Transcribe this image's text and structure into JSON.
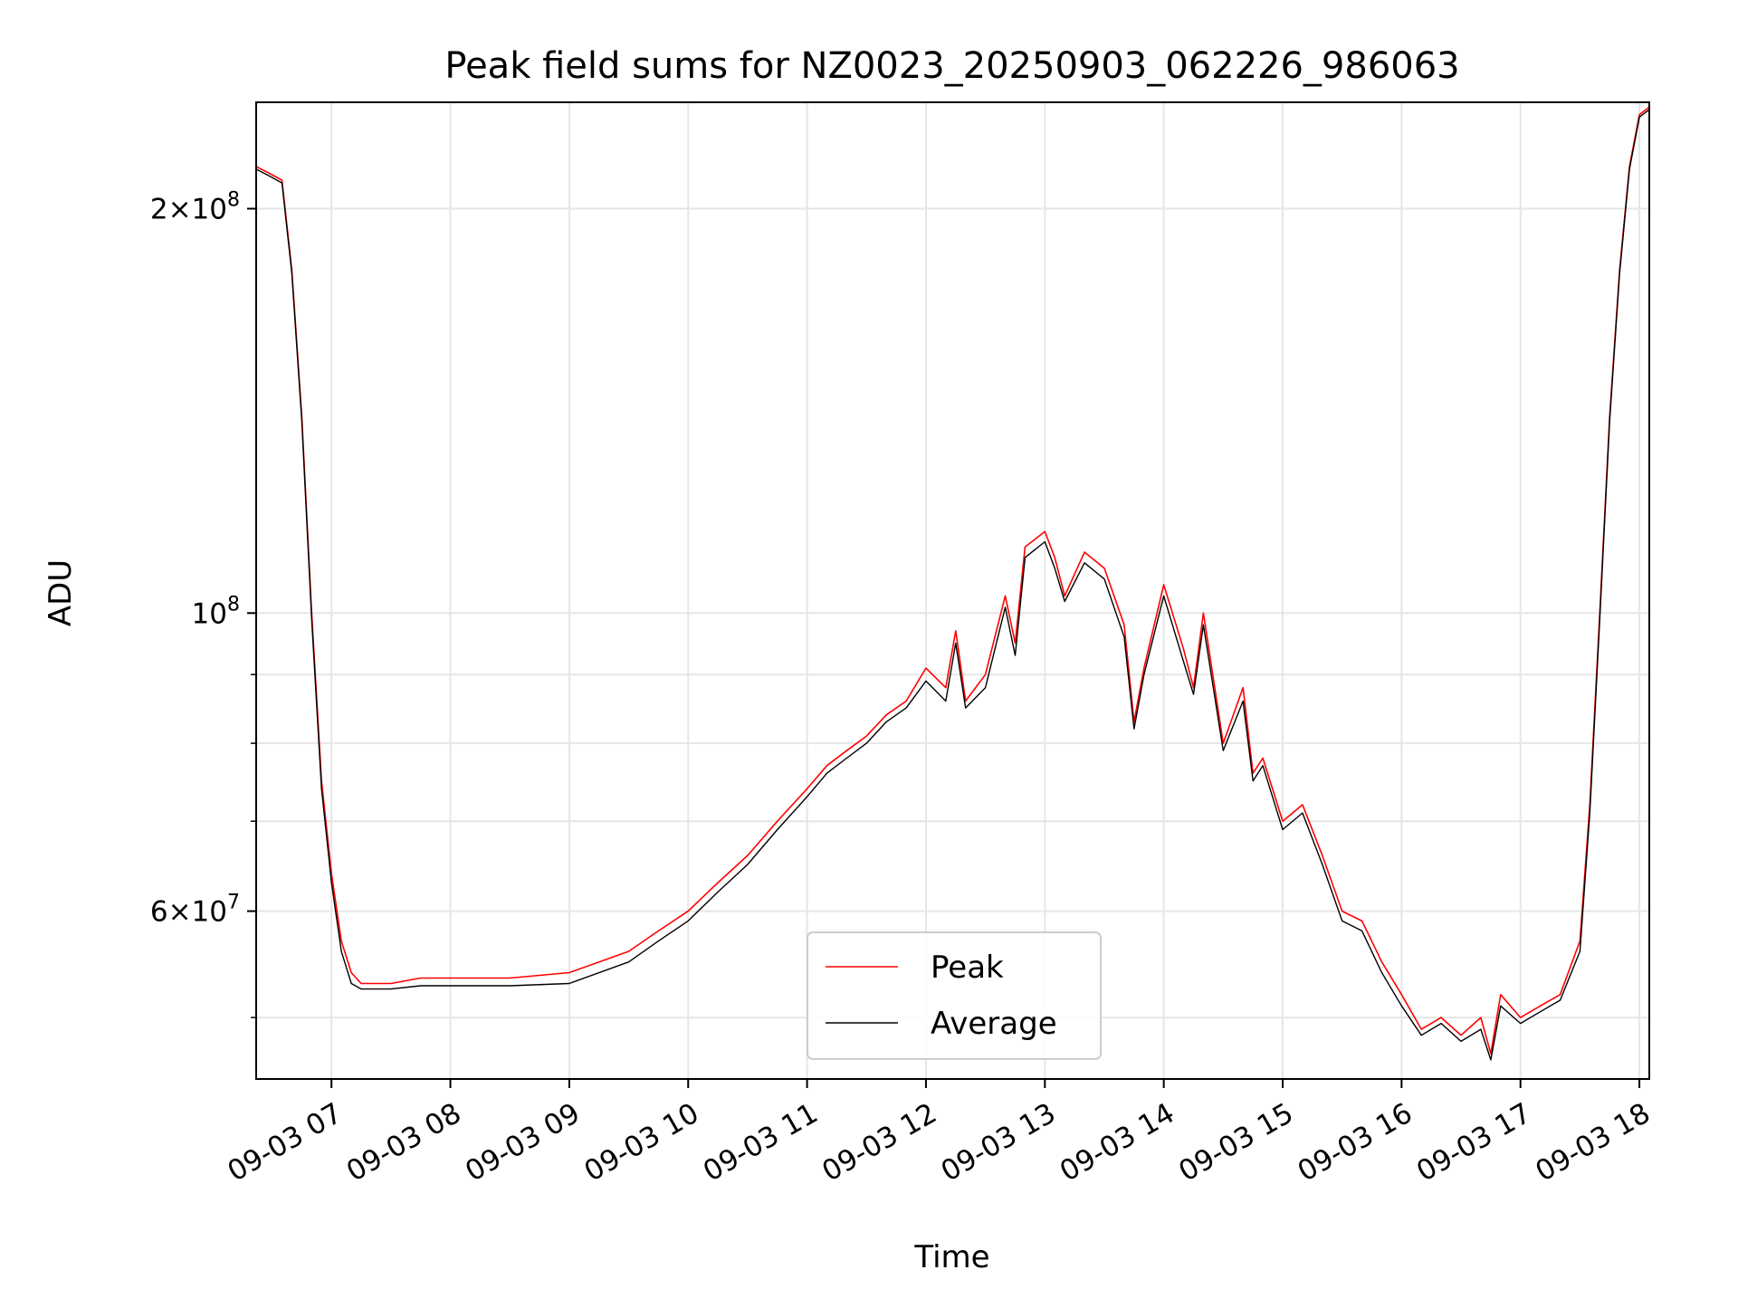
{
  "chart_data": {
    "type": "line",
    "title": "Peak field sums for NZ0023_20250903_062226_986063",
    "xlabel": "Time",
    "ylabel": "ADU",
    "xlim": [
      "09-03 06:22",
      "09-03 18:05"
    ],
    "ylim": [
      45000000,
      240000000
    ],
    "y_scale": "log",
    "grid": true,
    "legend_position": "lower center",
    "x_tick_labels": [
      "09-03 07",
      "09-03 08",
      "09-03 09",
      "09-03 10",
      "09-03 11",
      "09-03 12",
      "09-03 13",
      "09-03 14",
      "09-03 15",
      "09-03 16",
      "09-03 17",
      "09-03 18"
    ],
    "y_tick_labels": [
      {
        "value": 200000000,
        "mantissa": "2",
        "exponent": "8"
      },
      {
        "value": 100000000,
        "mantissa": "",
        "exponent": "8"
      },
      {
        "value": 60000000,
        "mantissa": "6",
        "exponent": "7"
      }
    ],
    "x": [
      "06:22",
      "06:30",
      "06:35",
      "06:40",
      "06:45",
      "06:50",
      "06:55",
      "07:00",
      "07:05",
      "07:10",
      "07:15",
      "07:20",
      "07:30",
      "07:45",
      "08:00",
      "08:30",
      "09:00",
      "09:30",
      "09:45",
      "10:00",
      "10:15",
      "10:30",
      "10:45",
      "11:00",
      "11:10",
      "11:20",
      "11:30",
      "11:40",
      "11:50",
      "12:00",
      "12:10",
      "12:15",
      "12:20",
      "12:30",
      "12:40",
      "12:45",
      "12:50",
      "13:00",
      "13:05",
      "13:10",
      "13:20",
      "13:30",
      "13:40",
      "13:45",
      "13:50",
      "14:00",
      "14:10",
      "14:15",
      "14:20",
      "14:30",
      "14:40",
      "14:45",
      "14:50",
      "15:00",
      "15:10",
      "15:20",
      "15:30",
      "15:40",
      "15:50",
      "16:00",
      "16:10",
      "16:20",
      "16:30",
      "16:40",
      "16:45",
      "16:50",
      "17:00",
      "17:10",
      "17:20",
      "17:30",
      "17:35",
      "17:40",
      "17:45",
      "17:50",
      "17:55",
      "18:00",
      "18:05"
    ],
    "series": [
      {
        "name": "Peak",
        "color": "#ff0000",
        "values": [
          215000000,
          212000000,
          210000000,
          180000000,
          140000000,
          100000000,
          75000000,
          64000000,
          57000000,
          54000000,
          53000000,
          53000000,
          53000000,
          53500000,
          53500000,
          53500000,
          54000000,
          56000000,
          58000000,
          60000000,
          63000000,
          66000000,
          70000000,
          74000000,
          77000000,
          79000000,
          81000000,
          84000000,
          86000000,
          91000000,
          88000000,
          97000000,
          86000000,
          90000000,
          103000000,
          95000000,
          112000000,
          115000000,
          110000000,
          103000000,
          111000000,
          108000000,
          98000000,
          83000000,
          91000000,
          105000000,
          94000000,
          88000000,
          100000000,
          80000000,
          88000000,
          76000000,
          78000000,
          70000000,
          72000000,
          66000000,
          60000000,
          59000000,
          55000000,
          52000000,
          49000000,
          50000000,
          48500000,
          50000000,
          47000000,
          52000000,
          50000000,
          51000000,
          52000000,
          57000000,
          72000000,
          100000000,
          140000000,
          180000000,
          215000000,
          235000000,
          238000000
        ]
      },
      {
        "name": "Average",
        "color": "#000000",
        "values": [
          214000000,
          211000000,
          209000000,
          179000000,
          139000000,
          99000000,
          74000000,
          63000000,
          56000000,
          53000000,
          52500000,
          52500000,
          52500000,
          52800000,
          52800000,
          52800000,
          53000000,
          55000000,
          57000000,
          59000000,
          62000000,
          65000000,
          69000000,
          73000000,
          76000000,
          78000000,
          80000000,
          83000000,
          85000000,
          89000000,
          86000000,
          95000000,
          85000000,
          88000000,
          101000000,
          93000000,
          110000000,
          113000000,
          108000000,
          102000000,
          109000000,
          106000000,
          96000000,
          82000000,
          90000000,
          103000000,
          92000000,
          87000000,
          98000000,
          79000000,
          86000000,
          75000000,
          77000000,
          69000000,
          71000000,
          65000000,
          59000000,
          58000000,
          54000000,
          51000000,
          48500000,
          49500000,
          48000000,
          49000000,
          46500000,
          51000000,
          49500000,
          50500000,
          51500000,
          56000000,
          71000000,
          99000000,
          139000000,
          179000000,
          214000000,
          234000000,
          237000000
        ]
      }
    ]
  }
}
